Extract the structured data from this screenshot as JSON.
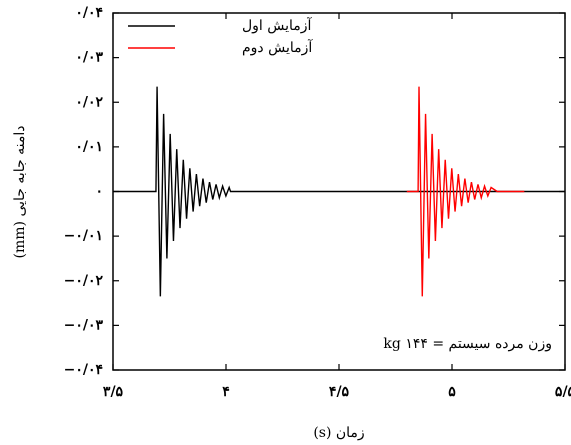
{
  "chart_data": {
    "type": "line",
    "x_label": "زمان (s)",
    "y_label": "دامنه جابه جایی (mm)",
    "annotation": "وزن مرده سیستم = ۱۴۴ kg",
    "legend": "upper left",
    "xlim": [
      3.5,
      5.5
    ],
    "xticks": [
      {
        "value": 3.5,
        "label": "۳/۵"
      },
      {
        "value": 4,
        "label": "۴"
      },
      {
        "value": 4.5,
        "label": "۴/۵"
      },
      {
        "value": 5,
        "label": "۵"
      },
      {
        "value": 5.5,
        "label": "۵/۵"
      }
    ],
    "ylim": [
      -0.04,
      0.04
    ],
    "yticks": [
      {
        "value": -0.04,
        "label": "−۰/۰۴"
      },
      {
        "value": -0.03,
        "label": "−۰/۰۳"
      },
      {
        "value": -0.02,
        "label": "−۰/۰۲"
      },
      {
        "value": -0.01,
        "label": "−۰/۰۱"
      },
      {
        "value": 0,
        "label": "۰"
      },
      {
        "value": 0.01,
        "label": "۰/۰۱"
      },
      {
        "value": 0.02,
        "label": "۰/۰۲"
      },
      {
        "value": 0.03,
        "label": "۰/۰۳"
      },
      {
        "value": 0.04,
        "label": "۰/۰۴"
      }
    ],
    "series": [
      {
        "name": "آزمایش اول",
        "color": "#000000",
        "x": [
          3.5,
          3.69,
          3.695,
          3.7095,
          3.724,
          3.7385,
          3.753,
          3.7675,
          3.782,
          3.7965,
          3.811,
          3.8255,
          3.84,
          3.8545,
          3.869,
          3.8835,
          3.898,
          3.9125,
          3.927,
          3.9415,
          3.956,
          3.9705,
          3.985,
          3.9995,
          4.014,
          4.02,
          5.5
        ],
        "values": [
          0,
          0,
          0.0235,
          -0.0235,
          0.0174,
          -0.015,
          0.0129,
          -0.0111,
          0.0095,
          -0.0082,
          0.0071,
          -0.0061,
          0.0052,
          -0.0045,
          0.0039,
          -0.0033,
          0.0029,
          -0.0025,
          0.0021,
          -0.0018,
          0.0016,
          -0.0014,
          0.0012,
          -0.001,
          0.0009,
          0,
          0
        ]
      },
      {
        "name": "آزمایش دوم",
        "color": "#ff0000",
        "x": [
          4.8,
          4.85,
          4.854,
          4.8685,
          4.883,
          4.8975,
          4.912,
          4.9265,
          4.941,
          4.9555,
          4.97,
          4.9845,
          4.999,
          5.0135,
          5.028,
          5.0425,
          5.057,
          5.0715,
          5.086,
          5.1005,
          5.115,
          5.1295,
          5.144,
          5.1585,
          5.173,
          5.2,
          5.32
        ],
        "values": [
          0,
          0,
          0.0235,
          -0.0235,
          0.0174,
          -0.015,
          0.0129,
          -0.0111,
          0.0095,
          -0.0082,
          0.0071,
          -0.0061,
          0.0052,
          -0.0045,
          0.0039,
          -0.0033,
          0.0029,
          -0.0025,
          0.0021,
          -0.0018,
          0.0016,
          -0.0014,
          0.0012,
          -0.001,
          0.0009,
          0,
          0
        ]
      }
    ]
  }
}
